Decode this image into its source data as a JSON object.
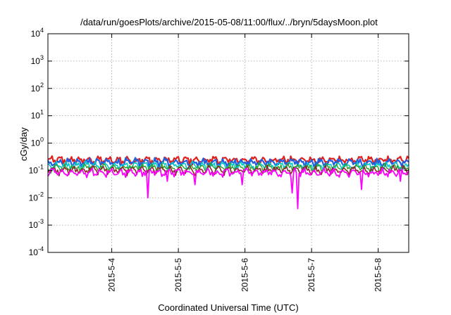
{
  "chart_data": {
    "type": "line",
    "title": "/data/run/goesPlots/archive/2015-05-08/11:00/flux/../bryn/5daysMoon.plot",
    "xlabel": "Coordinated Universal Time (UTC)",
    "ylabel": "cGy/day",
    "yscale": "log",
    "ylim": [
      0.0001,
      10000
    ],
    "xlim": [
      "2015-05-03 01:00",
      "2015-05-08 11:00"
    ],
    "grid": true,
    "x_ticks": [
      "2015-5-4",
      "2015-5-5",
      "2015-5-6",
      "2015-5-7",
      "2015-5-8"
    ],
    "y_ticks": [
      {
        "base": "10",
        "exp": "-4"
      },
      {
        "base": "10",
        "exp": "-3"
      },
      {
        "base": "10",
        "exp": "-2"
      },
      {
        "base": "10",
        "exp": "-1"
      },
      {
        "base": "10",
        "exp": "0"
      },
      {
        "base": "10",
        "exp": "1"
      },
      {
        "base": "10",
        "exp": "2"
      },
      {
        "base": "10",
        "exp": "3"
      },
      {
        "base": "10",
        "exp": "4"
      }
    ],
    "series": [
      {
        "color": "#e0201b",
        "approx_level": 0.24,
        "dips": []
      },
      {
        "color": "#1f5fe0",
        "approx_level": 0.2,
        "dips": []
      },
      {
        "color": "#00c8c8",
        "approx_level": 0.15,
        "dips": []
      },
      {
        "color": "#2aa02a",
        "approx_level": 0.13,
        "dips": []
      },
      {
        "color": "#8a2a2a",
        "approx_level": 0.105,
        "dips": []
      },
      {
        "color": "#ff00ff",
        "approx_level": 0.085,
        "dips": [
          {
            "time": "2015-05-04 13:00",
            "value": 0.01
          },
          {
            "time": "2015-05-04 20:00",
            "value": 0.04
          },
          {
            "time": "2015-05-05 06:00",
            "value": 0.03
          },
          {
            "time": "2015-05-05 23:00",
            "value": 0.03
          },
          {
            "time": "2015-05-06 17:00",
            "value": 0.015
          },
          {
            "time": "2015-05-06 19:00",
            "value": 0.004
          },
          {
            "time": "2015-05-07 18:00",
            "value": 0.02
          },
          {
            "time": "2015-05-08 08:00",
            "value": 0.04
          }
        ]
      }
    ]
  }
}
